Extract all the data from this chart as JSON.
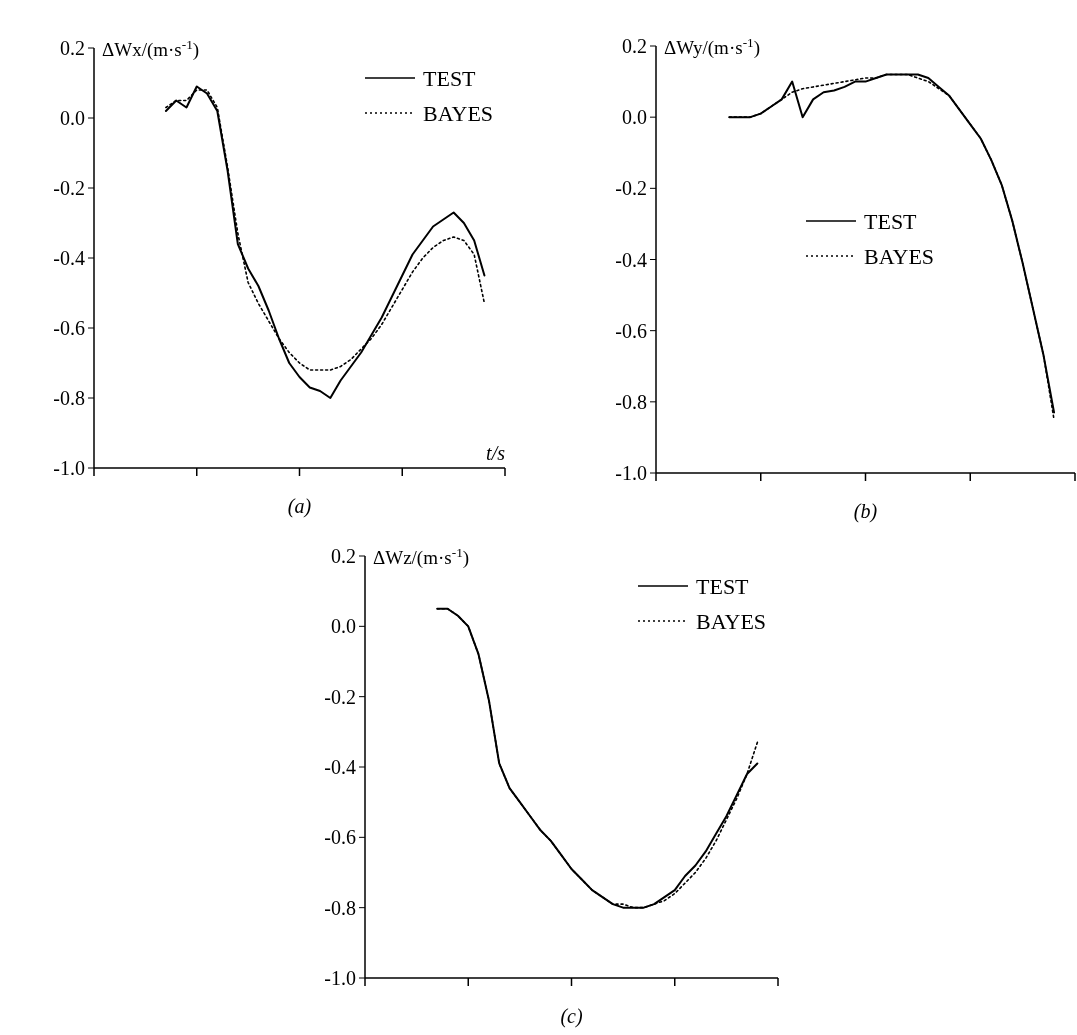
{
  "chart_data": [
    {
      "type": "line",
      "title": "(a)",
      "ylabel": "ΔWx/(m·s$^{-1}$)",
      "xlabel": "t/s",
      "categories": [
        null,
        null,
        null,
        null,
        null,
        null,
        null,
        null,
        null,
        null,
        null,
        null,
        null,
        null,
        null,
        null,
        null,
        null,
        null,
        null,
        null,
        null,
        null,
        null,
        null,
        null,
        null,
        null,
        null,
        null,
        null,
        null,
        null,
        null,
        null,
        null,
        null,
        null,
        null,
        null,
        null
      ],
      "ylim": [
        -1.0,
        0.2
      ],
      "yticks": [
        {
          "value": -1.0,
          "label": "-1.0"
        },
        {
          "value": -0.8,
          "label": "-0.8"
        },
        {
          "value": -0.6,
          "label": "-0.6"
        },
        {
          "value": -0.4,
          "label": "-0.4"
        },
        {
          "value": -0.2,
          "label": "-0.2"
        },
        {
          "value": 0,
          "label": "0.0"
        },
        {
          "value": 0.2,
          "label": "0.2"
        }
      ],
      "tick_labels": "y",
      "legend": "top right",
      "series": [
        {
          "name": "TEST",
          "color": "#000000",
          "line_style": "solid",
          "values": [
            null,
            null,
            null,
            null,
            null,
            null,
            null,
            0.02,
            0.05,
            0.03,
            0.09,
            0.07,
            0.02,
            -0.15,
            -0.36,
            -0.43,
            -0.48,
            -0.55,
            -0.63,
            -0.7,
            -0.74,
            -0.77,
            -0.78,
            -0.8,
            -0.75,
            -0.71,
            -0.67,
            -0.62,
            -0.57,
            -0.51,
            -0.45,
            -0.39,
            -0.35,
            -0.31,
            -0.29,
            -0.27,
            -0.3,
            -0.35,
            -0.45,
            null,
            null
          ]
        },
        {
          "name": "BAYES",
          "color": "#000000",
          "line_style": "dotted",
          "values": [
            null,
            null,
            null,
            null,
            null,
            null,
            null,
            0.03,
            0.05,
            0.05,
            0.08,
            0.08,
            0.03,
            -0.14,
            -0.33,
            -0.47,
            -0.53,
            -0.58,
            -0.63,
            -0.67,
            -0.7,
            -0.72,
            -0.72,
            -0.72,
            -0.71,
            -0.69,
            -0.66,
            -0.63,
            -0.59,
            -0.54,
            -0.49,
            -0.44,
            -0.4,
            -0.37,
            -0.35,
            -0.34,
            -0.35,
            -0.39,
            -0.53,
            null,
            null
          ]
        }
      ]
    },
    {
      "type": "line",
      "title": "(b)",
      "ylabel": "ΔWy/(m·s$^{-1}$)",
      "categories": [
        null,
        null,
        null,
        null,
        null,
        null,
        null,
        null,
        null,
        null,
        null,
        null,
        null,
        null,
        null,
        null,
        null,
        null,
        null,
        null,
        null,
        null,
        null,
        null,
        null,
        null,
        null,
        null,
        null,
        null,
        null,
        null,
        null,
        null,
        null,
        null,
        null,
        null,
        null,
        null,
        null
      ],
      "ylim": [
        -1.0,
        0.2
      ],
      "yticks": [
        {
          "value": -1.0,
          "label": "-1.0"
        },
        {
          "value": -0.8,
          "label": "-0.8"
        },
        {
          "value": -0.6,
          "label": "-0.6"
        },
        {
          "value": -0.4,
          "label": "-0.4"
        },
        {
          "value": -0.2,
          "label": "-0.2"
        },
        {
          "value": 0,
          "label": "0.0"
        },
        {
          "value": 0.2,
          "label": "0.2"
        }
      ],
      "tick_labels": "y",
      "legend": "right",
      "series": [
        {
          "name": "TEST",
          "color": "#000000",
          "line_style": "solid",
          "values": [
            null,
            null,
            null,
            null,
            null,
            null,
            null,
            0.0,
            0.0,
            0.0,
            0.01,
            0.03,
            0.05,
            0.1,
            0.0,
            0.05,
            0.07,
            0.075,
            0.085,
            0.1,
            0.1,
            0.11,
            0.12,
            0.12,
            0.12,
            0.12,
            0.11,
            0.085,
            0.06,
            0.02,
            -0.02,
            -0.06,
            -0.12,
            -0.19,
            -0.29,
            -0.41,
            -0.54,
            -0.67,
            -0.83,
            null,
            null
          ]
        },
        {
          "name": "BAYES",
          "color": "#000000",
          "line_style": "dotted",
          "values": [
            null,
            null,
            null,
            null,
            null,
            null,
            null,
            0.0,
            0.0,
            0.0,
            0.01,
            0.03,
            0.05,
            0.07,
            0.08,
            0.085,
            0.09,
            0.095,
            0.1,
            0.105,
            0.11,
            0.11,
            0.12,
            0.12,
            0.12,
            0.11,
            0.1,
            0.08,
            0.06,
            0.02,
            -0.02,
            -0.06,
            -0.12,
            -0.19,
            -0.29,
            -0.41,
            -0.54,
            -0.67,
            -0.85,
            null,
            null
          ]
        }
      ]
    },
    {
      "type": "line",
      "title": "(c)",
      "ylabel": "ΔWz/(m·s$^{-1}$)",
      "categories": [
        null,
        null,
        null,
        null,
        null,
        null,
        null,
        null,
        null,
        null,
        null,
        null,
        null,
        null,
        null,
        null,
        null,
        null,
        null,
        null,
        null,
        null,
        null,
        null,
        null,
        null,
        null,
        null,
        null,
        null,
        null,
        null,
        null,
        null,
        null,
        null,
        null,
        null,
        null,
        null,
        null
      ],
      "ylim": [
        -1.0,
        0.2
      ],
      "yticks": [
        {
          "value": -1.0,
          "label": "-1.0"
        },
        {
          "value": -0.8,
          "label": "-0.8"
        },
        {
          "value": -0.6,
          "label": "-0.6"
        },
        {
          "value": -0.4,
          "label": "-0.4"
        },
        {
          "value": -0.2,
          "label": "-0.2"
        },
        {
          "value": 0,
          "label": "0.0"
        },
        {
          "value": 0.2,
          "label": "0.2"
        }
      ],
      "tick_labels": "y",
      "legend": "top right",
      "series": [
        {
          "name": "TEST",
          "color": "#000000",
          "line_style": "solid",
          "values": [
            null,
            null,
            null,
            null,
            null,
            null,
            null,
            0.05,
            0.05,
            0.03,
            0.0,
            -0.08,
            -0.21,
            -0.39,
            -0.46,
            -0.5,
            -0.54,
            -0.58,
            -0.61,
            -0.65,
            -0.69,
            -0.72,
            -0.75,
            -0.77,
            -0.79,
            -0.8,
            -0.8,
            -0.8,
            -0.79,
            -0.77,
            -0.75,
            -0.71,
            -0.68,
            -0.64,
            -0.59,
            -0.54,
            -0.48,
            -0.42,
            -0.39,
            null,
            null
          ]
        },
        {
          "name": "BAYES",
          "color": "#000000",
          "line_style": "dotted",
          "values": [
            null,
            null,
            null,
            null,
            null,
            null,
            null,
            0.05,
            0.05,
            0.03,
            0.0,
            -0.08,
            -0.21,
            -0.39,
            -0.46,
            -0.5,
            -0.54,
            -0.58,
            -0.61,
            -0.65,
            -0.69,
            -0.72,
            -0.75,
            -0.77,
            -0.79,
            -0.79,
            -0.8,
            -0.8,
            -0.79,
            -0.78,
            -0.76,
            -0.73,
            -0.7,
            -0.66,
            -0.61,
            -0.55,
            -0.49,
            -0.42,
            -0.33,
            null,
            null
          ]
        }
      ]
    }
  ]
}
